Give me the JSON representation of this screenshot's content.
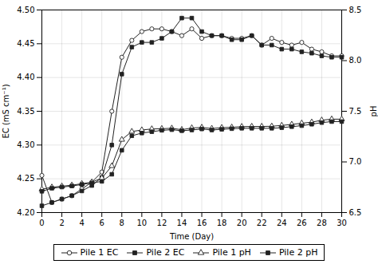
{
  "chart_data": {
    "type": "line",
    "xlabel": "Time (Day)",
    "ylabel": "EC (mS cm⁻¹)",
    "y2label": "pH",
    "x": [
      0,
      1,
      2,
      3,
      4,
      5,
      6,
      7,
      8,
      9,
      10,
      11,
      12,
      13,
      14,
      15,
      16,
      17,
      18,
      19,
      20,
      21,
      22,
      23,
      24,
      25,
      26,
      27,
      28,
      29,
      30
    ],
    "series": [
      {
        "name": "Pile 1 EC",
        "color": "#222222",
        "marker": "circle-open",
        "values": [
          4.255,
          4.215,
          4.22,
          4.225,
          4.235,
          4.245,
          4.26,
          4.35,
          4.43,
          4.455,
          4.468,
          4.472,
          4.472,
          4.468,
          4.462,
          4.472,
          4.458,
          4.462,
          4.462,
          4.458,
          4.458,
          4.462,
          4.448,
          4.458,
          4.452,
          4.448,
          4.452,
          4.442,
          4.438,
          4.432,
          4.432
        ]
      },
      {
        "name": "Pile 2 EC",
        "color": "#222222",
        "marker": "square",
        "values": [
          4.21,
          4.215,
          4.22,
          4.225,
          4.232,
          4.24,
          4.252,
          4.3,
          4.405,
          4.445,
          4.452,
          4.452,
          4.458,
          4.468,
          4.488,
          4.488,
          4.468,
          4.462,
          4.462,
          4.456,
          4.456,
          4.462,
          4.448,
          4.448,
          4.442,
          4.442,
          4.438,
          4.436,
          4.432,
          4.43,
          4.43
        ]
      },
      {
        "name": "Pile 1 pH",
        "color": "#222222",
        "marker": "triangle-open",
        "axis": "y2",
        "values": [
          6.73,
          6.75,
          6.76,
          6.77,
          6.785,
          6.8,
          6.84,
          6.96,
          7.22,
          7.3,
          7.315,
          7.325,
          7.328,
          7.332,
          7.318,
          7.335,
          7.34,
          7.33,
          7.338,
          7.342,
          7.348,
          7.35,
          7.35,
          7.352,
          7.36,
          7.37,
          7.382,
          7.392,
          7.412,
          7.422,
          7.422
        ]
      },
      {
        "name": "Pile 2 pH",
        "color": "#222222",
        "marker": "square",
        "axis": "y2",
        "values": [
          6.71,
          6.74,
          6.752,
          6.762,
          6.778,
          6.792,
          6.808,
          6.878,
          7.115,
          7.258,
          7.285,
          7.298,
          7.312,
          7.318,
          7.308,
          7.315,
          7.325,
          7.315,
          7.322,
          7.328,
          7.332,
          7.332,
          7.332,
          7.332,
          7.338,
          7.348,
          7.358,
          7.372,
          7.388,
          7.398,
          7.398
        ]
      }
    ],
    "xlim": [
      0,
      30
    ],
    "xticks": [
      0,
      2,
      4,
      6,
      8,
      10,
      12,
      14,
      16,
      18,
      20,
      22,
      24,
      26,
      28,
      30
    ],
    "ylim": [
      4.2,
      4.5
    ],
    "yticks": [
      {
        "value": 4.2,
        "label": "4.20"
      },
      4.25,
      {
        "value": 4.3,
        "label": "4.30"
      },
      4.35,
      {
        "value": 4.4,
        "label": "4.40"
      },
      4.45,
      {
        "value": 4.5,
        "label": "4.50"
      }
    ],
    "y2lim": [
      6.5,
      8.5
    ],
    "y2ticks": [
      6.5,
      {
        "value": 7.0,
        "label": "7.0"
      },
      7.5,
      {
        "value": 8.0,
        "label": "8.0"
      },
      8.5
    ],
    "grid": true,
    "legend": "bottom"
  }
}
